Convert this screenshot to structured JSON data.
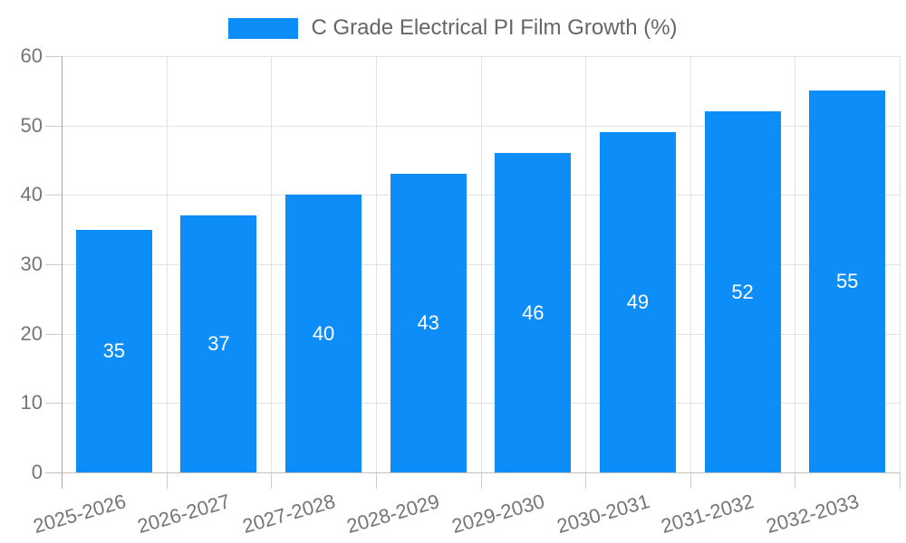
{
  "chart_data": {
    "type": "bar",
    "title": "C Grade Electrical PI Film Growth (%)",
    "categories": [
      "2025-2026",
      "2026-2027",
      "2027-2028",
      "2028-2029",
      "2029-2030",
      "2030-2031",
      "2031-2032",
      "2032-2033"
    ],
    "series": [
      {
        "name": "C Grade Electrical PI Film Growth (%)",
        "values": [
          35,
          37,
          40,
          43,
          46,
          49,
          52,
          55
        ]
      }
    ],
    "bar_value_labels": [
      "35",
      "37",
      "40",
      "43",
      "46",
      "49",
      "52",
      "55"
    ],
    "xlabel": "",
    "ylabel": "",
    "ylim": [
      0,
      60
    ],
    "yticks": [
      0,
      10,
      20,
      30,
      40,
      50,
      60
    ],
    "grid": true,
    "legend_position": "top-center",
    "colors": {
      "bar": "#0d8df8",
      "bar_value_text": "#ffffff",
      "gridline": "#e3e3e3",
      "axis_line": "#a6a6a6",
      "tick_mark": "#cdcdcd",
      "axis_text": "#757575",
      "legend_text": "#666666"
    }
  }
}
